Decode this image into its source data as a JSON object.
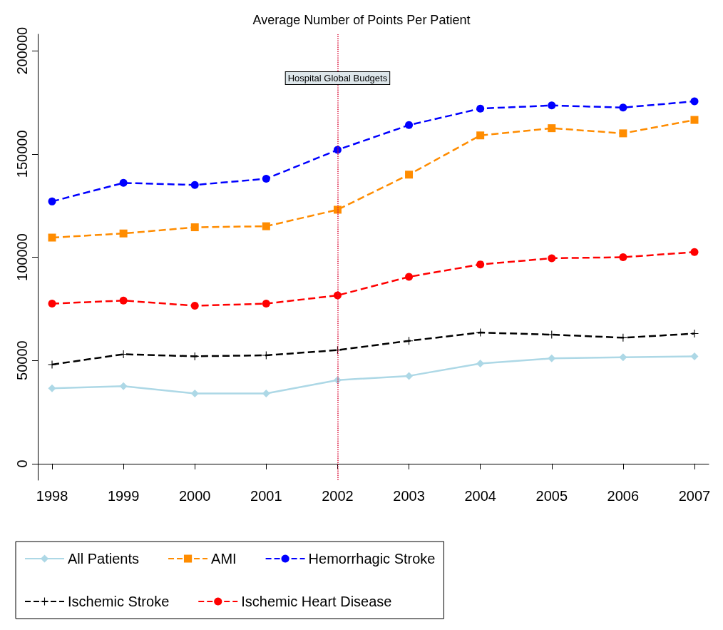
{
  "chart_data": {
    "type": "line",
    "title": "Average Number of Points Per Patient",
    "x": [
      1998,
      1999,
      2000,
      2001,
      2002,
      2003,
      2004,
      2005,
      2006,
      2007
    ],
    "xlim": [
      1997.8,
      2007.2
    ],
    "xticks": [
      1998,
      1999,
      2000,
      2001,
      2002,
      2003,
      2004,
      2005,
      2006,
      2007
    ],
    "ylim": [
      -8000,
      208000
    ],
    "yticks": [
      0,
      50000,
      100000,
      150000,
      200000
    ],
    "grid": false,
    "legend": "bottom",
    "series": [
      {
        "name": "All Patients",
        "color": "#add8e6",
        "marker": "diamond",
        "line_style": "solid",
        "values": [
          36500,
          37500,
          34000,
          34000,
          40500,
          42500,
          48500,
          51000,
          51500,
          52000
        ]
      },
      {
        "name": "AMI",
        "color": "#ff8c00",
        "marker": "square",
        "line_style": "dashed",
        "values": [
          109500,
          111500,
          114500,
          115000,
          123000,
          140000,
          159000,
          162500,
          160000,
          166500
        ]
      },
      {
        "name": "Hemorrhagic Stroke",
        "color": "#0000ff",
        "marker": "circle",
        "line_style": "dashed",
        "values": [
          127000,
          136000,
          135000,
          138000,
          152000,
          164000,
          172000,
          173500,
          172500,
          175500
        ]
      },
      {
        "name": "Ischemic Stroke",
        "color": "#000000",
        "marker": "cross",
        "line_style": "dashed",
        "values": [
          48000,
          53000,
          52000,
          52500,
          55000,
          59500,
          63500,
          62500,
          61000,
          63000
        ]
      },
      {
        "name": "Ischemic Heart Disease",
        "color": "#ff0000",
        "marker": "circle",
        "line_style": "dashed",
        "values": [
          77500,
          79000,
          76500,
          77500,
          81500,
          90500,
          96500,
          99500,
          100000,
          102500
        ]
      }
    ],
    "ref_lines": [
      {
        "axis": "x",
        "value": 2002,
        "label": "Hospital Global Budgets",
        "color": "#dc143c",
        "line_style": "dotted"
      }
    ]
  }
}
